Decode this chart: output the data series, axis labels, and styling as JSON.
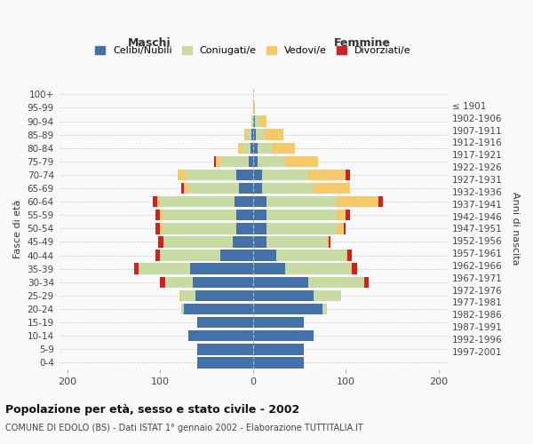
{
  "age_groups": [
    "0-4",
    "5-9",
    "10-14",
    "15-19",
    "20-24",
    "25-29",
    "30-34",
    "35-39",
    "40-44",
    "45-49",
    "50-54",
    "55-59",
    "60-64",
    "65-69",
    "70-74",
    "75-79",
    "80-84",
    "85-89",
    "90-94",
    "95-99",
    "100+"
  ],
  "birth_years": [
    "1997-2001",
    "1992-1996",
    "1987-1991",
    "1982-1986",
    "1977-1981",
    "1972-1976",
    "1967-1971",
    "1962-1966",
    "1957-1961",
    "1952-1956",
    "1947-1951",
    "1942-1946",
    "1937-1941",
    "1932-1936",
    "1927-1931",
    "1922-1926",
    "1917-1921",
    "1912-1916",
    "1907-1911",
    "1902-1906",
    "≤ 1901"
  ],
  "maschi": {
    "celibi": [
      60,
      60,
      70,
      60,
      75,
      62,
      65,
      68,
      35,
      22,
      18,
      18,
      20,
      15,
      18,
      5,
      3,
      2,
      0,
      0,
      0
    ],
    "coniugati": [
      0,
      0,
      0,
      0,
      2,
      15,
      30,
      55,
      65,
      75,
      80,
      80,
      80,
      55,
      55,
      30,
      8,
      5,
      2,
      0,
      0
    ],
    "vedovi": [
      0,
      0,
      0,
      0,
      0,
      2,
      0,
      0,
      0,
      0,
      2,
      2,
      3,
      5,
      8,
      5,
      5,
      2,
      0,
      0,
      0
    ],
    "divorziati": [
      0,
      0,
      0,
      0,
      0,
      0,
      5,
      5,
      5,
      5,
      5,
      5,
      5,
      2,
      0,
      2,
      0,
      0,
      0,
      0,
      0
    ]
  },
  "femmine": {
    "nubili": [
      55,
      55,
      65,
      55,
      75,
      65,
      60,
      35,
      25,
      15,
      15,
      15,
      15,
      10,
      10,
      5,
      5,
      3,
      2,
      0,
      0
    ],
    "coniugate": [
      0,
      0,
      0,
      0,
      5,
      30,
      60,
      70,
      75,
      65,
      75,
      75,
      75,
      55,
      50,
      30,
      15,
      10,
      5,
      0,
      0
    ],
    "vedove": [
      0,
      0,
      0,
      0,
      0,
      0,
      0,
      2,
      2,
      2,
      8,
      10,
      45,
      40,
      40,
      35,
      25,
      20,
      8,
      2,
      0
    ],
    "divorziate": [
      0,
      0,
      0,
      0,
      0,
      0,
      5,
      5,
      5,
      2,
      2,
      5,
      5,
      0,
      5,
      0,
      0,
      0,
      0,
      0,
      0
    ]
  },
  "colors": {
    "celibi": "#4472a8",
    "coniugati": "#c8dba4",
    "vedovi": "#f5c96a",
    "divorziati": "#cc2222"
  },
  "xlim": 210,
  "title": "Popolazione per età, sesso e stato civile - 2002",
  "subtitle": "COMUNE DI EDOLO (BS) - Dati ISTAT 1° gennaio 2002 - Elaborazione TUTTITALIA.IT",
  "ylabel_left": "Fasce di età",
  "ylabel_right": "Anni di nascita",
  "xlabel_left": "Maschi",
  "xlabel_right": "Femmine",
  "bg_color": "#f9f9f9",
  "legend_labels": [
    "Celibi/Nubili",
    "Coniugati/e",
    "Vedovi/e",
    "Divorziati/e"
  ]
}
